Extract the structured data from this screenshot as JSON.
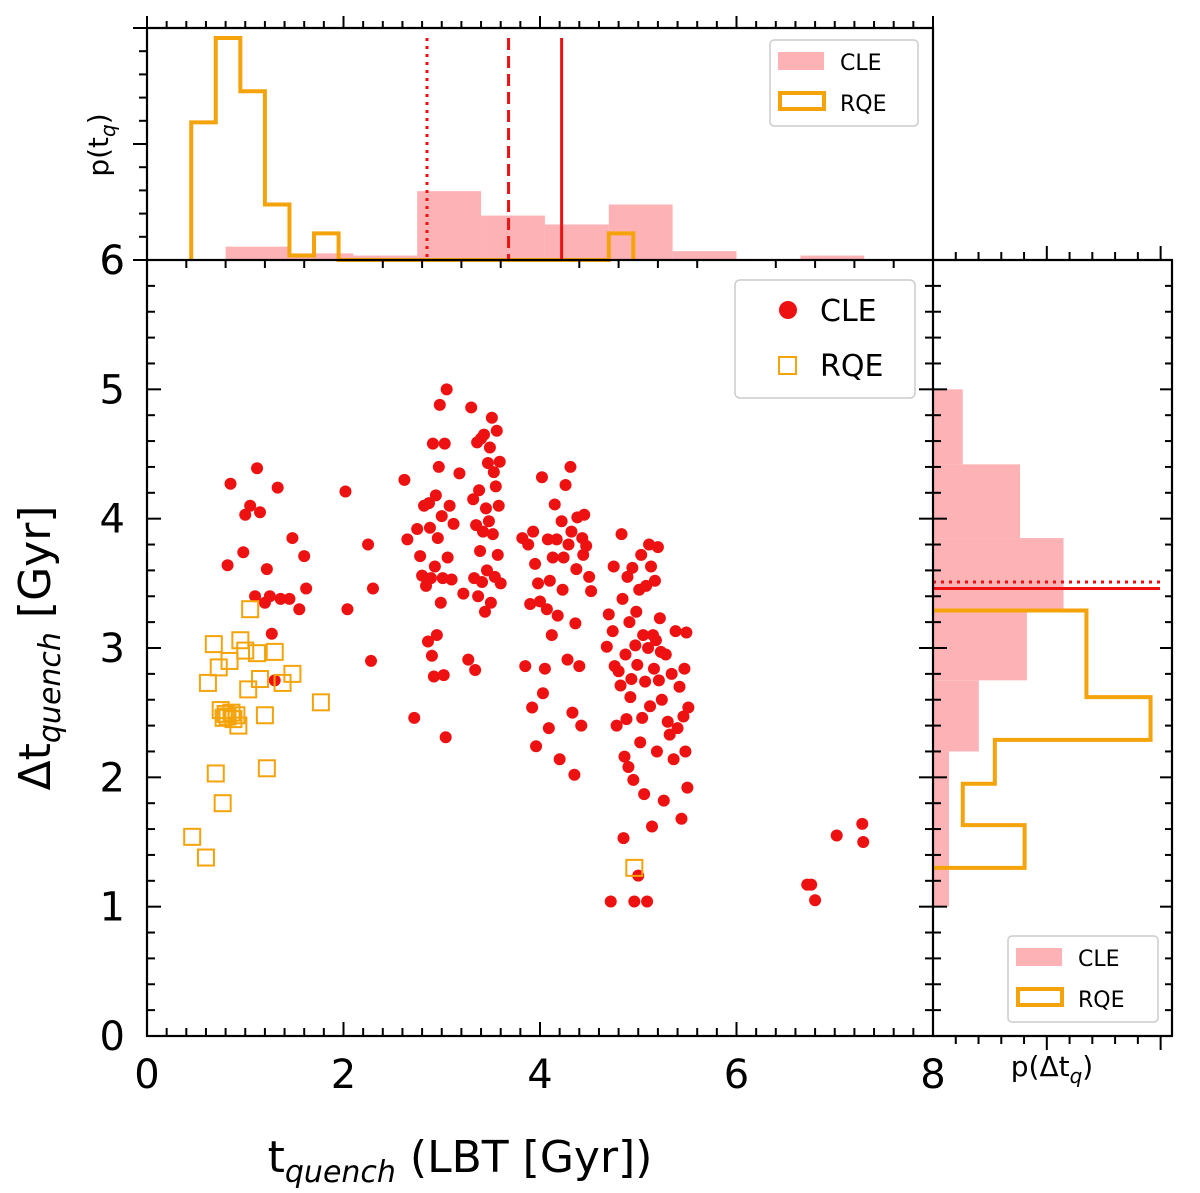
{
  "chart_data": {
    "type": "scatter",
    "main": {
      "xlabel_main": "t",
      "xlabel_sub": "quench",
      "xlabel_rest": " (LBT [Gyr])",
      "ylabel_pre": "Δt",
      "ylabel_sub": "quench",
      "ylabel_rest": " [Gyr]",
      "xlim": [
        0,
        8
      ],
      "ylim": [
        0,
        6
      ],
      "xticks": [
        "0",
        "2",
        "4",
        "6",
        "8"
      ],
      "yticks": [
        "0",
        "1",
        "2",
        "3",
        "4",
        "5",
        "6"
      ],
      "legend_position": "top-right",
      "series": [
        {
          "name": "CLE",
          "marker": "filled-circle",
          "color": "#ee1111",
          "points": [
            [
              0.82,
              3.64
            ],
            [
              0.85,
              4.27
            ],
            [
              0.98,
              3.74
            ],
            [
              1.0,
              4.03
            ],
            [
              1.05,
              4.1
            ],
            [
              1.1,
              3.4
            ],
            [
              1.12,
              4.39
            ],
            [
              1.15,
              4.05
            ],
            [
              1.2,
              3.35
            ],
            [
              1.22,
              3.61
            ],
            [
              1.25,
              3.4
            ],
            [
              1.27,
              3.11
            ],
            [
              1.3,
              2.75
            ],
            [
              1.33,
              4.24
            ],
            [
              1.36,
              3.38
            ],
            [
              1.45,
              3.38
            ],
            [
              1.48,
              3.85
            ],
            [
              1.55,
              3.3
            ],
            [
              1.6,
              3.71
            ],
            [
              1.62,
              3.46
            ],
            [
              2.02,
              4.21
            ],
            [
              2.04,
              3.3
            ],
            [
              2.25,
              3.8
            ],
            [
              2.28,
              2.9
            ],
            [
              2.3,
              3.46
            ],
            [
              2.62,
              4.3
            ],
            [
              2.65,
              3.84
            ],
            [
              2.72,
              2.46
            ],
            [
              2.75,
              3.92
            ],
            [
              2.78,
              3.71
            ],
            [
              2.8,
              3.56
            ],
            [
              2.82,
              4.1
            ],
            [
              2.84,
              3.48
            ],
            [
              2.86,
              3.05
            ],
            [
              2.87,
              4.12
            ],
            [
              2.88,
              3.93
            ],
            [
              2.89,
              3.54
            ],
            [
              2.9,
              2.94
            ],
            [
              2.91,
              4.58
            ],
            [
              2.92,
              2.78
            ],
            [
              2.93,
              3.63
            ],
            [
              2.94,
              4.18
            ],
            [
              2.95,
              3.1
            ],
            [
              2.96,
              3.85
            ],
            [
              2.97,
              4.4
            ],
            [
              2.98,
              4.88
            ],
            [
              2.99,
              3.35
            ],
            [
              3.0,
              4.02
            ],
            [
              3.01,
              3.54
            ],
            [
              3.02,
              2.79
            ],
            [
              3.03,
              4.58
            ],
            [
              3.04,
              2.31
            ],
            [
              3.05,
              5.0
            ],
            [
              3.06,
              3.7
            ],
            [
              3.08,
              4.1
            ],
            [
              3.1,
              3.53
            ],
            [
              3.12,
              3.96
            ],
            [
              3.18,
              4.35
            ],
            [
              3.22,
              3.42
            ],
            [
              3.27,
              2.91
            ],
            [
              3.3,
              4.86
            ],
            [
              3.32,
              4.15
            ],
            [
              3.33,
              3.54
            ],
            [
              3.34,
              2.83
            ],
            [
              3.35,
              3.95
            ],
            [
              3.36,
              4.59
            ],
            [
              3.37,
              3.4
            ],
            [
              3.38,
              4.22
            ],
            [
              3.39,
              3.75
            ],
            [
              3.4,
              4.62
            ],
            [
              3.41,
              3.51
            ],
            [
              3.42,
              3.9
            ],
            [
              3.43,
              4.65
            ],
            [
              3.44,
              3.28
            ],
            [
              3.45,
              4.08
            ],
            [
              3.46,
              3.6
            ],
            [
              3.47,
              4.43
            ],
            [
              3.48,
              3.98
            ],
            [
              3.49,
              4.55
            ],
            [
              3.5,
              3.35
            ],
            [
              3.51,
              4.78
            ],
            [
              3.52,
              3.88
            ],
            [
              3.53,
              4.36
            ],
            [
              3.54,
              3.55
            ],
            [
              3.55,
              4.25
            ],
            [
              3.56,
              4.68
            ],
            [
              3.57,
              3.72
            ],
            [
              3.58,
              4.1
            ],
            [
              3.59,
              4.44
            ],
            [
              3.6,
              3.5
            ],
            [
              3.82,
              3.85
            ],
            [
              3.85,
              2.86
            ],
            [
              3.88,
              3.8
            ],
            [
              3.9,
              3.34
            ],
            [
              3.92,
              2.54
            ],
            [
              3.93,
              3.9
            ],
            [
              3.95,
              3.65
            ],
            [
              3.96,
              2.24
            ],
            [
              3.98,
              3.5
            ],
            [
              4.0,
              3.36
            ],
            [
              4.02,
              4.32
            ],
            [
              4.03,
              2.65
            ],
            [
              4.05,
              2.84
            ],
            [
              4.07,
              3.3
            ],
            [
              4.08,
              3.84
            ],
            [
              4.09,
              2.38
            ],
            [
              4.1,
              3.52
            ],
            [
              4.12,
              3.1
            ],
            [
              4.13,
              3.7
            ],
            [
              4.15,
              4.11
            ],
            [
              4.17,
              3.84
            ],
            [
              4.18,
              3.25
            ],
            [
              4.2,
              2.14
            ],
            [
              4.22,
              3.98
            ],
            [
              4.23,
              3.45
            ],
            [
              4.24,
              3.7
            ],
            [
              4.26,
              4.26
            ],
            [
              4.28,
              2.91
            ],
            [
              4.29,
              3.8
            ],
            [
              4.31,
              4.4
            ],
            [
              4.32,
              3.9
            ],
            [
              4.33,
              2.5
            ],
            [
              4.35,
              2.02
            ],
            [
              4.36,
              3.19
            ],
            [
              4.37,
              3.61
            ],
            [
              4.38,
              4.01
            ],
            [
              4.4,
              2.86
            ],
            [
              4.42,
              2.4
            ],
            [
              4.43,
              3.85
            ],
            [
              4.44,
              3.72
            ],
            [
              4.45,
              4.03
            ],
            [
              4.47,
              3.79
            ],
            [
              4.5,
              3.55
            ],
            [
              4.52,
              3.44
            ],
            [
              4.68,
              3.01
            ],
            [
              4.7,
              3.26
            ],
            [
              4.72,
              1.04
            ],
            [
              4.74,
              3.13
            ],
            [
              4.75,
              3.63
            ],
            [
              4.76,
              2.86
            ],
            [
              4.78,
              2.4
            ],
            [
              4.8,
              2.82
            ],
            [
              4.82,
              2.71
            ],
            [
              4.83,
              3.88
            ],
            [
              4.84,
              3.38
            ],
            [
              4.85,
              1.53
            ],
            [
              4.86,
              2.16
            ],
            [
              4.87,
              2.95
            ],
            [
              4.88,
              2.45
            ],
            [
              4.89,
              3.55
            ],
            [
              4.9,
              2.08
            ],
            [
              4.91,
              3.2
            ],
            [
              4.92,
              2.62
            ],
            [
              4.93,
              2.76
            ],
            [
              4.94,
              3.62
            ],
            [
              4.95,
              1.98
            ],
            [
              4.96,
              1.04
            ],
            [
              4.97,
              3.02
            ],
            [
              4.98,
              3.28
            ],
            [
              4.99,
              2.87
            ],
            [
              5.0,
              1.24
            ],
            [
              5.01,
              3.45
            ],
            [
              5.02,
              2.27
            ],
            [
              5.03,
              3.72
            ],
            [
              5.04,
              2.46
            ],
            [
              5.05,
              3.1
            ],
            [
              5.06,
              1.87
            ],
            [
              5.07,
              2.74
            ],
            [
              5.08,
              3.48
            ],
            [
              5.09,
              1.04
            ],
            [
              5.1,
              3.0
            ],
            [
              5.11,
              3.8
            ],
            [
              5.12,
              2.55
            ],
            [
              5.13,
              3.63
            ],
            [
              5.14,
              1.62
            ],
            [
              5.15,
              3.1
            ],
            [
              5.16,
              2.84
            ],
            [
              5.17,
              3.52
            ],
            [
              5.18,
              3.06
            ],
            [
              5.19,
              2.2
            ],
            [
              5.2,
              3.78
            ],
            [
              5.21,
              2.75
            ],
            [
              5.22,
              3.23
            ],
            [
              5.23,
              2.97
            ],
            [
              5.24,
              2.6
            ],
            [
              5.26,
              1.82
            ],
            [
              5.28,
              2.95
            ],
            [
              5.3,
              2.43
            ],
            [
              5.32,
              2.33
            ],
            [
              5.34,
              2.8
            ],
            [
              5.36,
              2.14
            ],
            [
              5.38,
              3.13
            ],
            [
              5.4,
              2.38
            ],
            [
              5.42,
              2.7
            ],
            [
              5.44,
              1.68
            ],
            [
              5.46,
              2.47
            ],
            [
              5.47,
              2.84
            ],
            [
              5.48,
              2.2
            ],
            [
              5.49,
              3.12
            ],
            [
              5.5,
              1.92
            ],
            [
              5.51,
              2.54
            ],
            [
              6.72,
              1.17
            ],
            [
              6.76,
              1.17
            ],
            [
              6.8,
              1.05
            ],
            [
              7.02,
              1.55
            ],
            [
              7.28,
              1.64
            ],
            [
              7.29,
              1.5
            ]
          ]
        },
        {
          "name": "RQE",
          "marker": "open-square",
          "color": "#f5a30a",
          "points": [
            [
              0.46,
              1.54
            ],
            [
              0.6,
              1.38
            ],
            [
              0.62,
              2.73
            ],
            [
              0.68,
              3.03
            ],
            [
              0.7,
              2.03
            ],
            [
              0.73,
              2.85
            ],
            [
              0.75,
              2.52
            ],
            [
              0.77,
              1.8
            ],
            [
              0.78,
              2.46
            ],
            [
              0.8,
              2.49
            ],
            [
              0.82,
              2.47
            ],
            [
              0.84,
              2.9
            ],
            [
              0.86,
              2.5
            ],
            [
              0.88,
              2.45
            ],
            [
              0.91,
              2.48
            ],
            [
              0.93,
              2.4
            ],
            [
              0.95,
              3.06
            ],
            [
              1.0,
              2.98
            ],
            [
              1.03,
              2.68
            ],
            [
              1.05,
              3.3
            ],
            [
              1.12,
              2.96
            ],
            [
              1.15,
              2.76
            ],
            [
              1.2,
              2.48
            ],
            [
              1.22,
              2.07
            ],
            [
              1.3,
              2.97
            ],
            [
              1.38,
              2.73
            ],
            [
              1.48,
              2.8
            ],
            [
              1.77,
              2.58
            ],
            [
              4.96,
              1.3
            ]
          ]
        }
      ]
    },
    "top_hist": {
      "ylabel": "p(t",
      "ylabel_sub": "q",
      "ylabel_end": ")",
      "y_tick_label": "6",
      "legend_position": "top-right",
      "series": [
        {
          "name": "CLE",
          "style": "filled",
          "color": "#fdb3b5",
          "bins": [
            0.8,
            1.45,
            2.1,
            2.75,
            3.4,
            4.05,
            4.7,
            5.35,
            6.0,
            6.65,
            7.3
          ],
          "heights": [
            0.06,
            0.03,
            0.02,
            0.31,
            0.2,
            0.16,
            0.25,
            0.04,
            0.0,
            0.02
          ]
        },
        {
          "name": "RQE",
          "style": "step",
          "color": "#f5a30a",
          "bins": [
            0.45,
            0.7,
            0.95,
            1.2,
            1.45,
            1.7,
            1.95,
            2.2,
            2.45,
            2.7,
            2.95,
            3.2,
            3.45,
            3.7,
            3.95,
            4.2,
            4.45,
            4.7,
            4.95
          ],
          "heights": [
            0.62,
            1.0,
            0.76,
            0.25,
            0.02,
            0.12,
            0.0,
            0.0,
            0.0,
            0.0,
            0.0,
            0.0,
            0.0,
            0.0,
            0.0,
            0.0,
            0.0,
            0.12
          ]
        }
      ],
      "vlines": [
        {
          "x": 2.85,
          "style": "dotted",
          "color": "#ee1111"
        },
        {
          "x": 3.68,
          "style": "dashed",
          "color": "#ee1111"
        },
        {
          "x": 4.22,
          "style": "solid",
          "color": "#ee1111"
        }
      ]
    },
    "right_hist": {
      "xlabel": "p(Δt",
      "xlabel_sub": "q",
      "xlabel_end": ")",
      "legend_position": "bottom-right",
      "series": [
        {
          "name": "CLE",
          "style": "filled",
          "color": "#fdb3b5",
          "bins": [
            1.0,
            1.6,
            2.2,
            2.75,
            3.3,
            3.85,
            4.42,
            5.0
          ],
          "widths": [
            0.07,
            0.07,
            0.2,
            0.41,
            0.57,
            0.38,
            0.13
          ]
        },
        {
          "name": "RQE",
          "style": "step",
          "color": "#f5a30a",
          "bins": [
            1.3,
            1.63,
            1.95,
            2.29,
            2.62,
            3.29
          ],
          "widths": [
            0.4,
            0.13,
            0.27,
            0.95,
            0.67
          ]
        }
      ],
      "hlines": [
        {
          "y": 3.51,
          "style": "dotted",
          "color": "#ee1111"
        },
        {
          "y": 3.46,
          "style": "solid",
          "color": "#ee1111"
        }
      ]
    }
  }
}
